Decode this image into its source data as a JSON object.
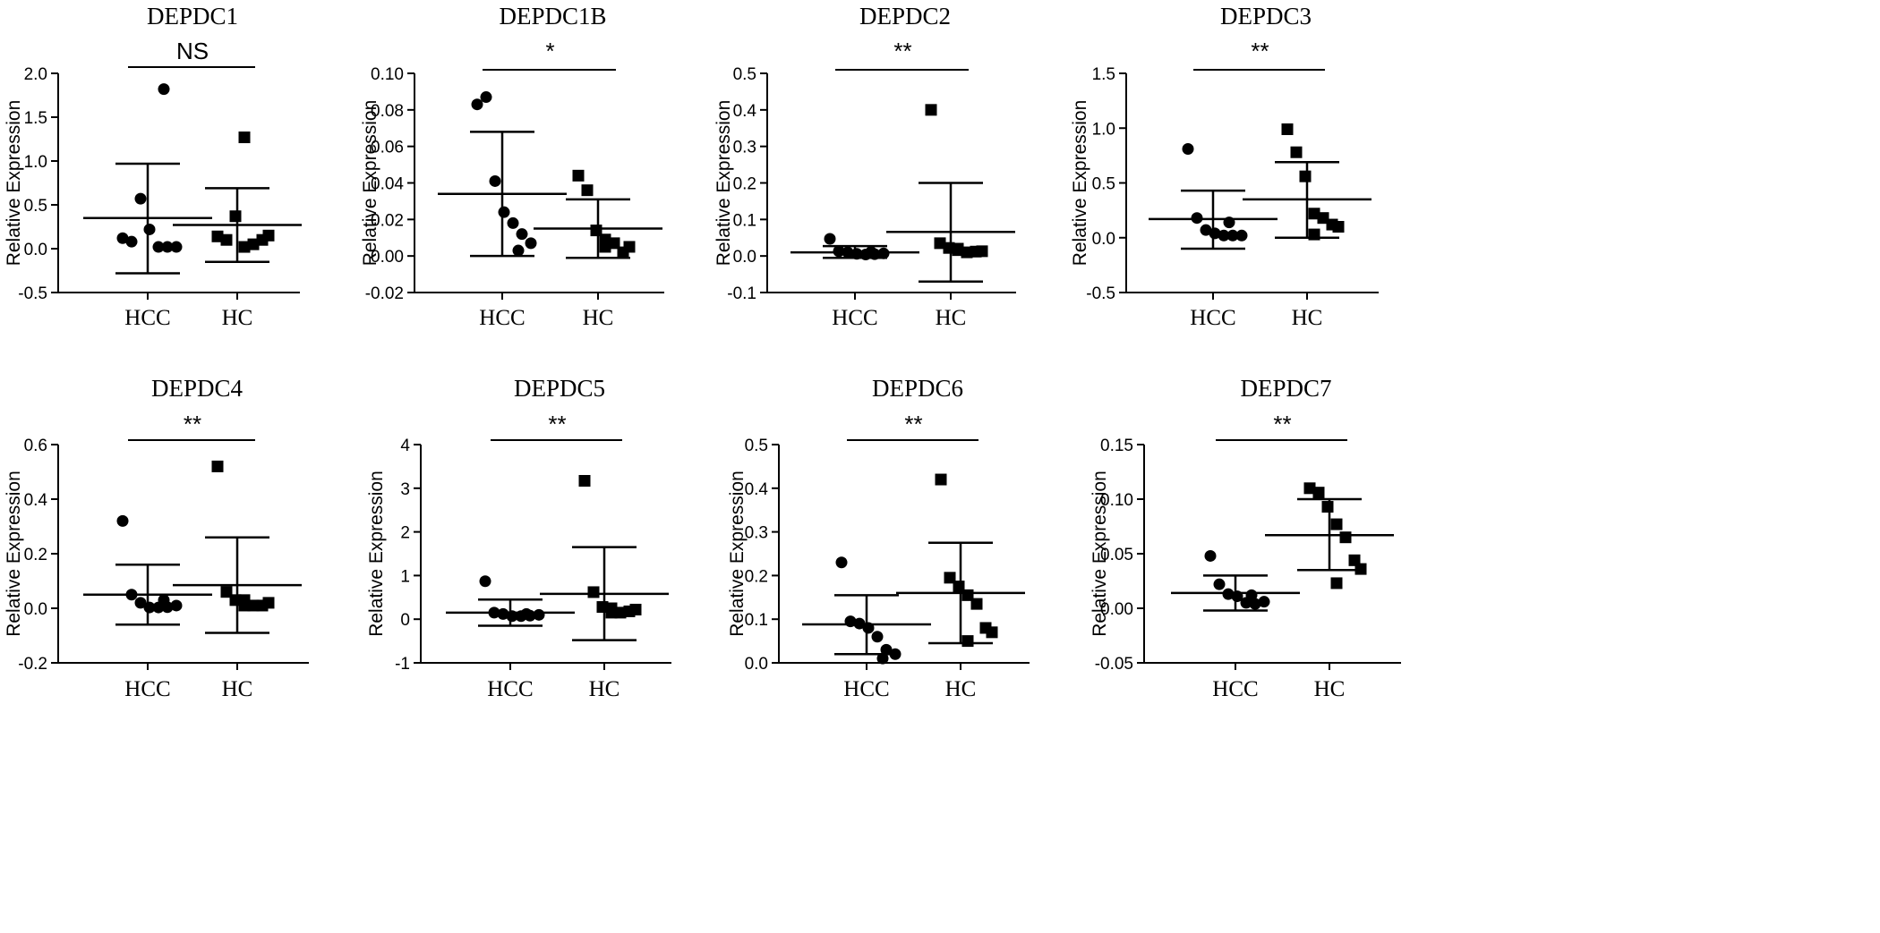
{
  "chart_data": [
    {
      "type": "scatter",
      "title": "DEPDC1",
      "ylabel": "Relative Expression",
      "categories": [
        "HCC",
        "HC"
      ],
      "ylim": [
        -0.5,
        2.0
      ],
      "yticks": [
        "-0.5",
        "0.0",
        "0.5",
        "1.0",
        "1.5",
        "2.0"
      ],
      "significance": "NS",
      "series": [
        {
          "name": "HCC",
          "marker": "circle",
          "mean": 0.35,
          "sd_upper": 0.97,
          "sd_lower": -0.28,
          "values": [
            0.12,
            0.08,
            0.57,
            0.22,
            0.02,
            0.02,
            0.02,
            1.82
          ]
        },
        {
          "name": "HC",
          "marker": "square",
          "mean": 0.27,
          "sd_upper": 0.69,
          "sd_lower": -0.15,
          "values": [
            0.14,
            0.1,
            0.37,
            0.02,
            0.05,
            0.1,
            0.15,
            1.27
          ]
        }
      ]
    },
    {
      "type": "scatter",
      "title": "DEPDC1B",
      "ylabel": "Relative Expression",
      "categories": [
        "HCC",
        "HC"
      ],
      "ylim": [
        -0.02,
        0.1
      ],
      "yticks": [
        "-0.02",
        "0.00",
        "0.02",
        "0.04",
        "0.06",
        "0.08",
        "0.10"
      ],
      "significance": "*",
      "series": [
        {
          "name": "HCC",
          "marker": "circle",
          "mean": 0.034,
          "sd_upper": 0.068,
          "sd_lower": 0.0,
          "values": [
            0.083,
            0.087,
            0.041,
            0.024,
            0.018,
            0.012,
            0.007,
            0.003
          ]
        },
        {
          "name": "HC",
          "marker": "square",
          "mean": 0.015,
          "sd_upper": 0.031,
          "sd_lower": -0.001,
          "values": [
            0.044,
            0.036,
            0.014,
            0.005,
            0.007,
            0.002,
            0.005,
            0.009
          ]
        }
      ]
    },
    {
      "type": "scatter",
      "title": "DEPDC2",
      "ylabel": "Relative Expression",
      "categories": [
        "HCC",
        "HC"
      ],
      "ylim": [
        -0.1,
        0.5
      ],
      "yticks": [
        "-0.1",
        "0.0",
        "0.1",
        "0.2",
        "0.3",
        "0.4",
        "0.5"
      ],
      "significance": "**",
      "series": [
        {
          "name": "HCC",
          "marker": "circle",
          "mean": 0.01,
          "sd_upper": 0.027,
          "sd_lower": -0.005,
          "values": [
            0.047,
            0.013,
            0.01,
            0.006,
            0.004,
            0.005,
            0.007,
            0.011
          ]
        },
        {
          "name": "HC",
          "marker": "square",
          "mean": 0.066,
          "sd_upper": 0.2,
          "sd_lower": -0.07,
          "values": [
            0.4,
            0.035,
            0.022,
            0.016,
            0.01,
            0.012,
            0.013,
            0.02
          ]
        }
      ]
    },
    {
      "type": "scatter",
      "title": "DEPDC3",
      "ylabel": "Relative Expression",
      "categories": [
        "HCC",
        "HC"
      ],
      "ylim": [
        -0.5,
        1.5
      ],
      "yticks": [
        "-0.5",
        "0.0",
        "0.5",
        "1.0",
        "1.5"
      ],
      "significance": "**",
      "series": [
        {
          "name": "HCC",
          "marker": "circle",
          "mean": 0.17,
          "sd_upper": 0.43,
          "sd_lower": -0.1,
          "values": [
            0.81,
            0.18,
            0.07,
            0.04,
            0.02,
            0.02,
            0.02,
            0.14
          ]
        },
        {
          "name": "HC",
          "marker": "square",
          "mean": 0.35,
          "sd_upper": 0.69,
          "sd_lower": 0.0,
          "values": [
            0.99,
            0.78,
            0.56,
            0.22,
            0.18,
            0.12,
            0.1,
            0.03
          ]
        }
      ]
    },
    {
      "type": "scatter",
      "title": "DEPDC4",
      "ylabel": "Relative Expression",
      "categories": [
        "HCC",
        "HC"
      ],
      "ylim": [
        -0.2,
        0.6
      ],
      "yticks": [
        "-0.2",
        "0.0",
        "0.2",
        "0.4",
        "0.6"
      ],
      "significance": "**",
      "series": [
        {
          "name": "HCC",
          "marker": "circle",
          "mean": 0.05,
          "sd_upper": 0.16,
          "sd_lower": -0.06,
          "values": [
            0.32,
            0.05,
            0.02,
            0.003,
            0.003,
            0.004,
            0.01,
            0.03
          ]
        },
        {
          "name": "HC",
          "marker": "square",
          "mean": 0.085,
          "sd_upper": 0.26,
          "sd_lower": -0.09,
          "values": [
            0.52,
            0.06,
            0.03,
            0.01,
            0.01,
            0.01,
            0.02,
            0.03
          ]
        }
      ]
    },
    {
      "type": "scatter",
      "title": "DEPDC5",
      "ylabel": "Relative Expression",
      "categories": [
        "HCC",
        "HC"
      ],
      "ylim": [
        -1,
        4
      ],
      "yticks": [
        "-1",
        "0",
        "1",
        "2",
        "3",
        "4"
      ],
      "significance": "**",
      "series": [
        {
          "name": "HCC",
          "marker": "circle",
          "mean": 0.15,
          "sd_upper": 0.45,
          "sd_lower": -0.15,
          "values": [
            0.87,
            0.15,
            0.12,
            0.07,
            0.07,
            0.08,
            0.1,
            0.12
          ]
        },
        {
          "name": "HC",
          "marker": "square",
          "mean": 0.58,
          "sd_upper": 1.65,
          "sd_lower": -0.48,
          "values": [
            3.17,
            0.62,
            0.28,
            0.15,
            0.15,
            0.18,
            0.22,
            0.25
          ]
        }
      ]
    },
    {
      "type": "scatter",
      "title": "DEPDC6",
      "ylabel": "Relative Expression",
      "categories": [
        "HCC",
        "HC"
      ],
      "ylim": [
        0.0,
        0.5
      ],
      "yticks": [
        "0.0",
        "0.1",
        "0.2",
        "0.3",
        "0.4",
        "0.5"
      ],
      "significance": "**",
      "series": [
        {
          "name": "HCC",
          "marker": "circle",
          "mean": 0.088,
          "sd_upper": 0.155,
          "sd_lower": 0.02,
          "values": [
            0.23,
            0.095,
            0.09,
            0.08,
            0.06,
            0.03,
            0.02,
            0.01
          ]
        },
        {
          "name": "HC",
          "marker": "square",
          "mean": 0.16,
          "sd_upper": 0.275,
          "sd_lower": 0.045,
          "values": [
            0.42,
            0.195,
            0.175,
            0.155,
            0.135,
            0.08,
            0.07,
            0.05
          ]
        }
      ]
    },
    {
      "type": "scatter",
      "title": "DEPDC7",
      "ylabel": "Relative Expression",
      "categories": [
        "HCC",
        "HC"
      ],
      "ylim": [
        -0.05,
        0.15
      ],
      "yticks": [
        "-0.05",
        "0.00",
        "0.05",
        "0.10",
        "0.15"
      ],
      "significance": "**",
      "series": [
        {
          "name": "HCC",
          "marker": "circle",
          "mean": 0.014,
          "sd_upper": 0.03,
          "sd_lower": -0.002,
          "values": [
            0.048,
            0.022,
            0.013,
            0.011,
            0.005,
            0.004,
            0.006,
            0.012
          ]
        },
        {
          "name": "HC",
          "marker": "square",
          "mean": 0.067,
          "sd_upper": 0.1,
          "sd_lower": 0.035,
          "values": [
            0.11,
            0.106,
            0.093,
            0.077,
            0.065,
            0.044,
            0.036,
            0.023
          ]
        }
      ]
    }
  ]
}
